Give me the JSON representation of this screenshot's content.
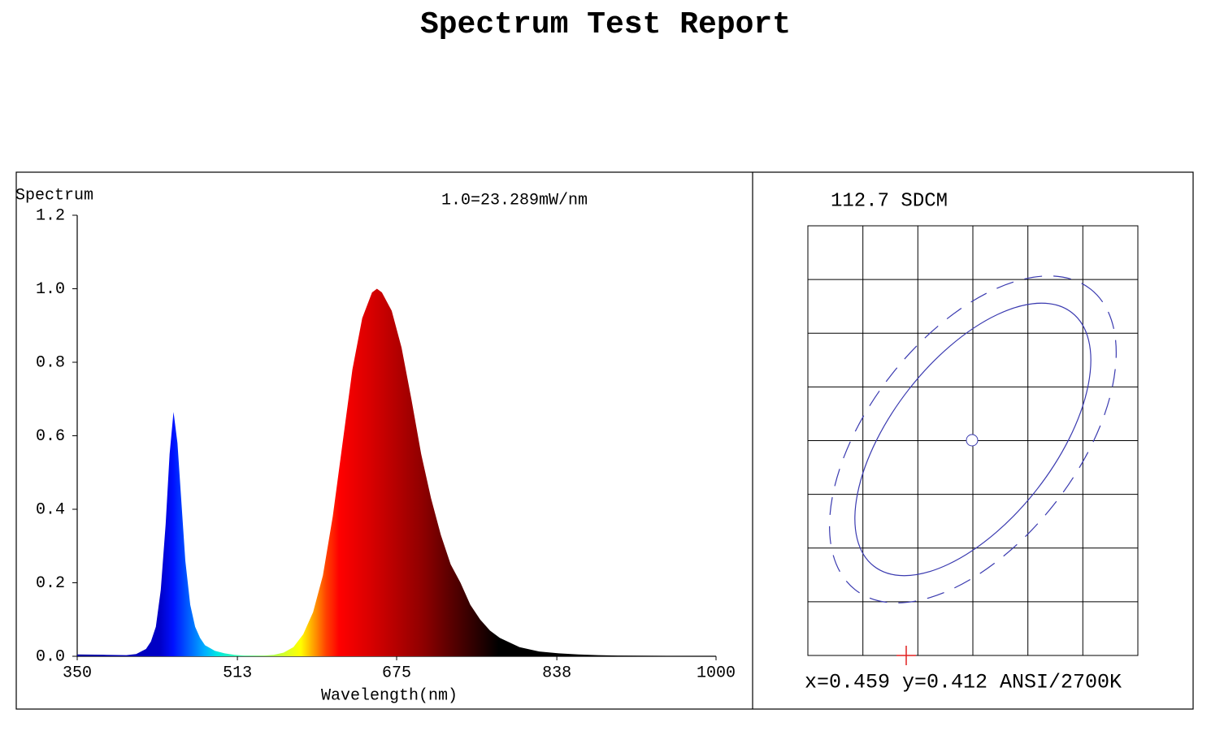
{
  "title": "Spectrum Test Report",
  "chart_data": {
    "type": "area",
    "ylabel": "Spectrum",
    "annotation": "1.0=23.289mW/nm",
    "xlabel": "Wavelength(nm)",
    "x": [
      350,
      380,
      400,
      410,
      420,
      425,
      430,
      435,
      440,
      444,
      448,
      452,
      456,
      460,
      465,
      470,
      475,
      480,
      490,
      500,
      510,
      520,
      530,
      540,
      550,
      560,
      570,
      580,
      590,
      600,
      610,
      620,
      630,
      640,
      650,
      655,
      660,
      670,
      680,
      690,
      700,
      710,
      720,
      730,
      740,
      750,
      760,
      770,
      780,
      800,
      820,
      840,
      860,
      880,
      900,
      950,
      1000
    ],
    "values": [
      0.005,
      0.004,
      0.003,
      0.006,
      0.02,
      0.04,
      0.08,
      0.18,
      0.36,
      0.55,
      0.665,
      0.58,
      0.42,
      0.26,
      0.14,
      0.08,
      0.05,
      0.03,
      0.015,
      0.008,
      0.004,
      0.002,
      0.002,
      0.002,
      0.004,
      0.01,
      0.025,
      0.06,
      0.12,
      0.22,
      0.38,
      0.58,
      0.78,
      0.92,
      0.99,
      1.0,
      0.99,
      0.94,
      0.84,
      0.7,
      0.55,
      0.43,
      0.33,
      0.25,
      0.2,
      0.14,
      0.1,
      0.07,
      0.05,
      0.025,
      0.013,
      0.008,
      0.005,
      0.003,
      0.002,
      0.001,
      0.001
    ],
    "xlim": [
      350,
      1000
    ],
    "ylim": [
      0,
      1.2
    ],
    "xticks": [
      350,
      513,
      675,
      838,
      1000
    ],
    "yticks": [
      {
        "value": 0,
        "label": "0.0"
      },
      0.2,
      0.4,
      0.6,
      0.8,
      {
        "value": 1,
        "label": "1.0"
      },
      1.2
    ]
  },
  "sdcm_panel": {
    "title": "112.7 SDCM",
    "coordinates": "x=0.459 y=0.412 ANSI/2700K"
  }
}
